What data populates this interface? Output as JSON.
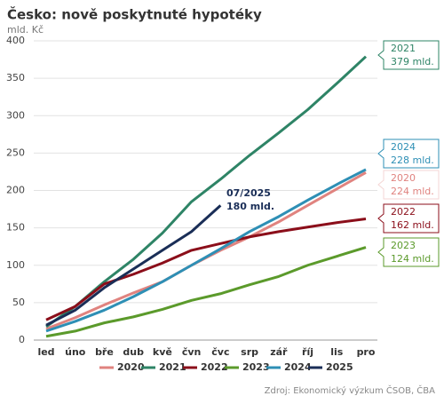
{
  "chart_data": {
    "type": "line",
    "title": "Česko: nově poskytnuté hypotéky",
    "subtitle": "mld. Kč",
    "source": "Zdroj: Ekonomický výzkum ČSOB, ČBA",
    "categories": [
      "led",
      "úno",
      "bře",
      "dub",
      "kvě",
      "čvn",
      "čvc",
      "srp",
      "zář",
      "říj",
      "lis",
      "pro"
    ],
    "series": [
      {
        "name": "2020",
        "color": "#e0837f",
        "values": [
          15,
          30,
          47,
          63,
          78,
          100,
          120,
          138,
          158,
          180,
          202,
          224
        ]
      },
      {
        "name": "2021",
        "color": "#2e8466",
        "values": [
          18,
          45,
          78,
          108,
          143,
          185,
          215,
          247,
          277,
          308,
          343,
          379
        ]
      },
      {
        "name": "2022",
        "color": "#8b0e1a",
        "values": [
          27,
          45,
          75,
          88,
          103,
          120,
          129,
          138,
          145,
          151,
          157,
          162
        ]
      },
      {
        "name": "2023",
        "color": "#5b9a2b",
        "values": [
          5,
          12,
          23,
          31,
          41,
          53,
          62,
          74,
          85,
          100,
          112,
          124
        ]
      },
      {
        "name": "2024",
        "color": "#2e8fb5",
        "values": [
          12,
          25,
          40,
          58,
          78,
          100,
          122,
          145,
          165,
          187,
          208,
          228
        ]
      },
      {
        "name": "2025",
        "color": "#1a2e57",
        "values": [
          20,
          40,
          70,
          95,
          120,
          145,
          180,
          null,
          null,
          null,
          null,
          null
        ]
      }
    ],
    "ylim": [
      0,
      400
    ],
    "yticks": [
      0,
      50,
      100,
      150,
      200,
      250,
      300,
      350,
      400
    ],
    "grid": true,
    "annotations": [
      {
        "lines": [
          "2021",
          "379 mld."
        ]
      },
      {
        "lines": [
          "2024",
          "228 mld."
        ]
      },
      {
        "lines": [
          "2020",
          "224 mld."
        ]
      },
      {
        "lines": [
          "2022",
          "162 mld."
        ]
      },
      {
        "lines": [
          "2023",
          "124 mld."
        ]
      },
      {
        "lines": [
          "07/2025",
          "180 mld."
        ]
      }
    ]
  }
}
